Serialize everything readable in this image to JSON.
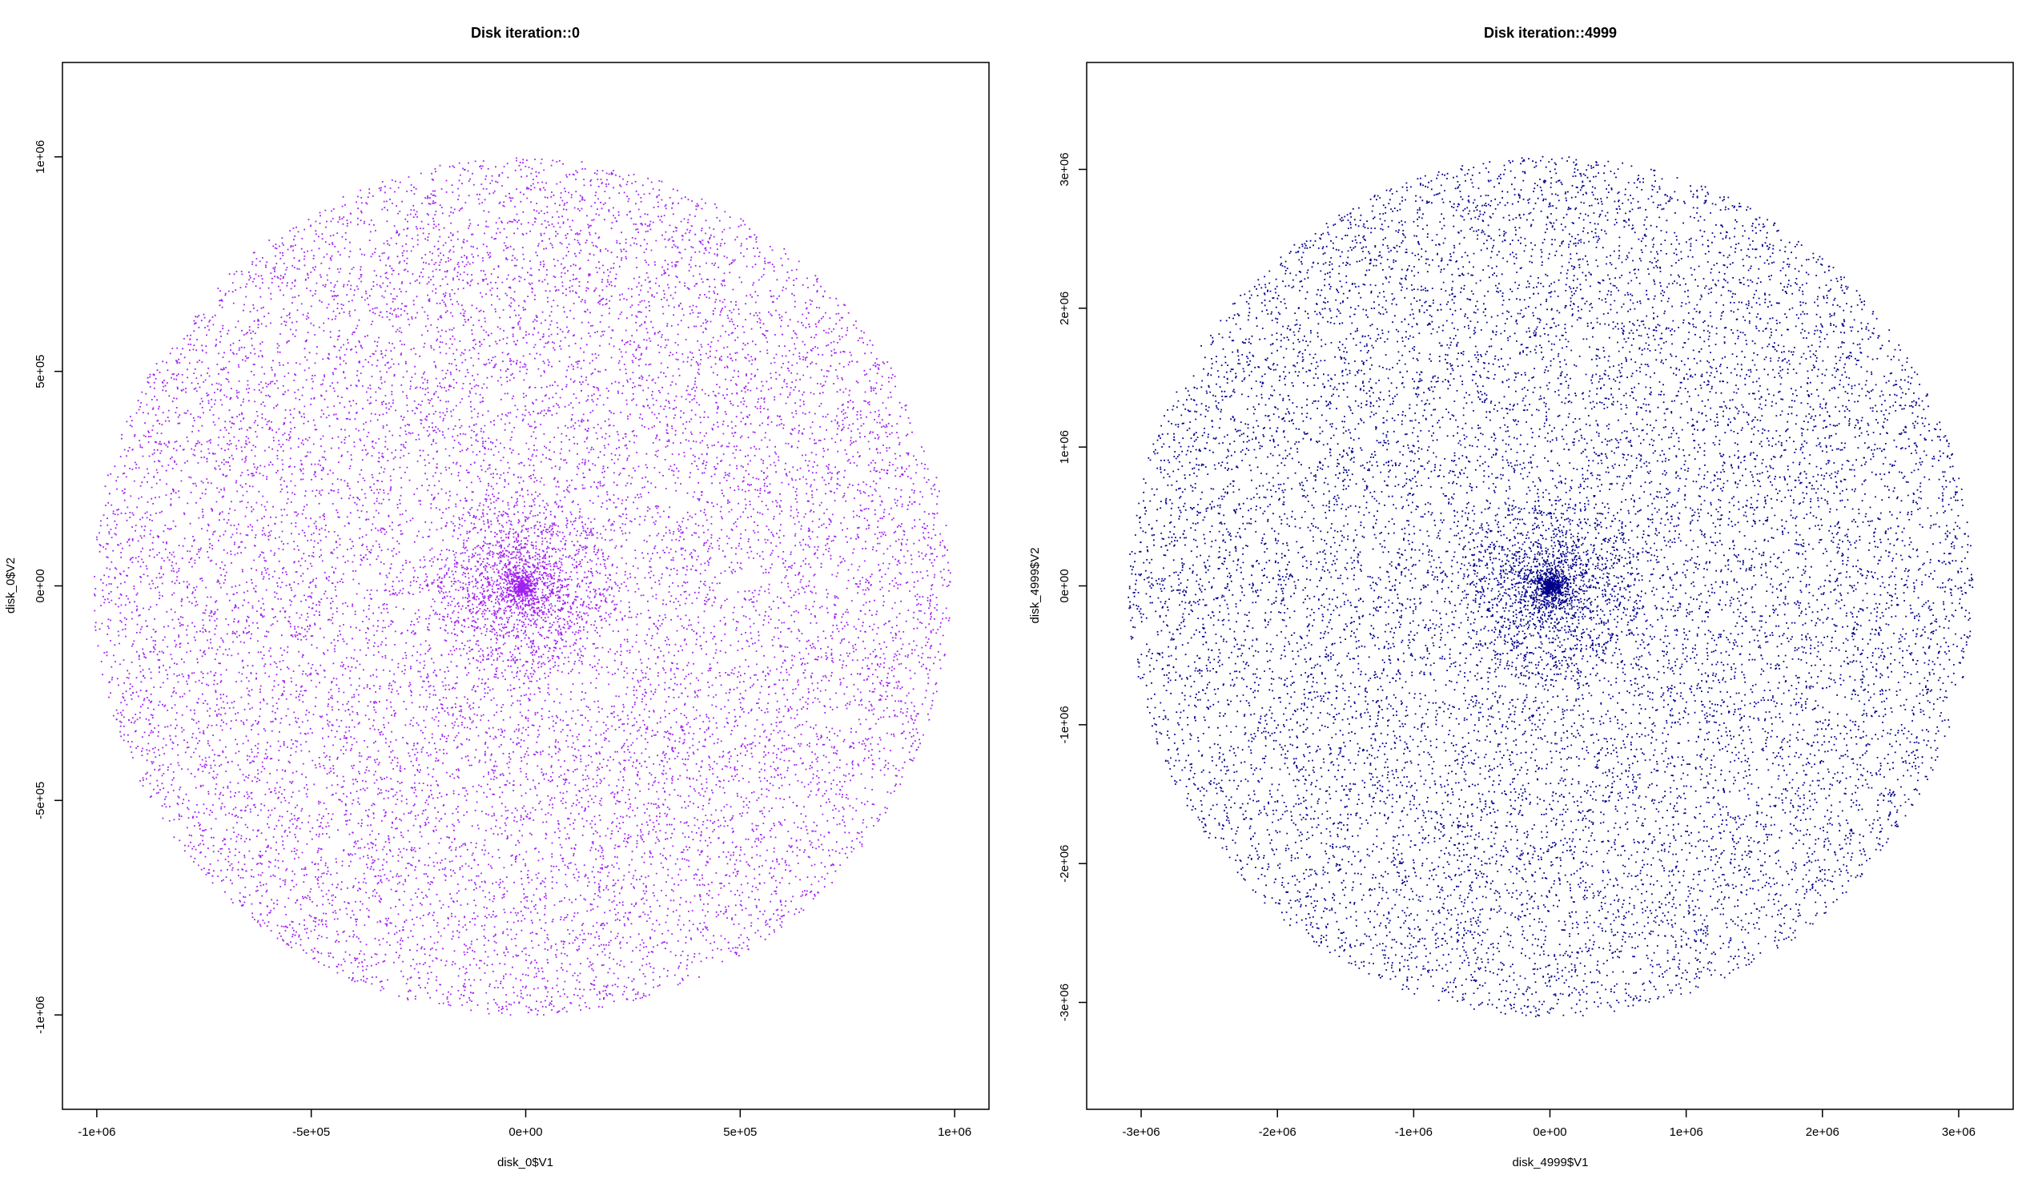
{
  "chart_data": [
    {
      "type": "scatter",
      "title": "Disk iteration::0",
      "xlabel": "disk_0$V1",
      "ylabel": "disk_0$V2",
      "xlim": [
        -1080000,
        1080000
      ],
      "ylim": [
        -1220000,
        1220000
      ],
      "xticks": [
        -1000000,
        -500000,
        0,
        500000,
        1000000
      ],
      "xtick_labels": [
        "-1e+06",
        "-5e+05",
        "0e+00",
        "5e+05",
        "1e+06"
      ],
      "yticks": [
        -1000000,
        -500000,
        0,
        500000,
        1000000
      ],
      "ytick_labels": [
        "-1e+06",
        "-5e+05",
        "0e+00",
        "5e+05",
        "1e+06"
      ],
      "point_color": "#a020f0",
      "grid": false,
      "distribution": {
        "shape": "disk",
        "center": [
          -10000,
          0
        ],
        "radius": 1000000,
        "n_points": 16000,
        "concentration": "dense core at center"
      }
    },
    {
      "type": "scatter",
      "title": "Disk iteration::4999",
      "xlabel": "disk_4999$V1",
      "ylabel": "disk_4999$V2",
      "xlim": [
        -3400000,
        3400000
      ],
      "ylim": [
        -3770000,
        3770000
      ],
      "xticks": [
        -3000000,
        -2000000,
        -1000000,
        0,
        1000000,
        2000000,
        3000000
      ],
      "xtick_labels": [
        "-3e+06",
        "-2e+06",
        "-1e+06",
        "0e+00",
        "1e+06",
        "2e+06",
        "3e+06"
      ],
      "yticks": [
        -3000000,
        -2000000,
        -1000000,
        0,
        1000000,
        2000000,
        3000000
      ],
      "ytick_labels": [
        "-3e+06",
        "-2e+06",
        "-1e+06",
        "0e+00",
        "1e+06",
        "2e+06",
        "3e+06"
      ],
      "point_color": "#00008b",
      "grid": false,
      "distribution": {
        "shape": "disk",
        "center": [
          0,
          0
        ],
        "radius": 3100000,
        "n_points": 16000,
        "concentration": "dense core at center"
      }
    }
  ]
}
